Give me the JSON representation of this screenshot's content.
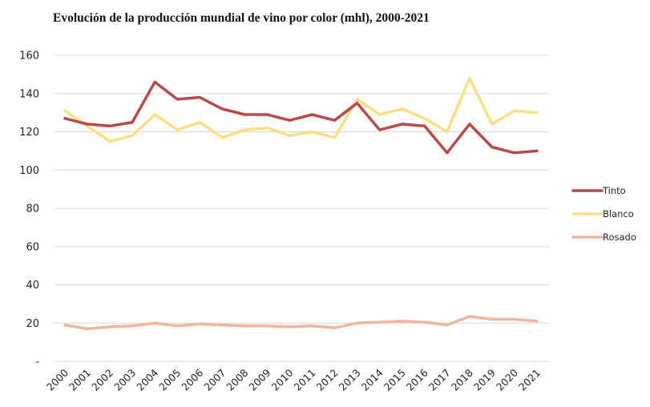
{
  "chart_data": {
    "type": "line",
    "title": "Evolución de la producción mundial de vino por color (mhl), 2000-2021",
    "xlabel": "",
    "ylabel": "",
    "ylim": [
      0,
      160
    ],
    "yticks": [
      0,
      20,
      40,
      60,
      80,
      100,
      120,
      140,
      160
    ],
    "ytick_labels": [
      "-",
      "20",
      "40",
      "60",
      "80",
      "100",
      "120",
      "140",
      "160"
    ],
    "grid": true,
    "legend_position": "right",
    "categories": [
      "2000",
      "2001",
      "2002",
      "2003",
      "2004",
      "2005",
      "2006",
      "2007",
      "2008",
      "2009",
      "2010",
      "2011",
      "2012",
      "2013",
      "2014",
      "2015",
      "2016",
      "2017",
      "2018",
      "2019",
      "2020",
      "2021"
    ],
    "series": [
      {
        "name": "Tinto",
        "color": "#b84a4a",
        "values": [
          127,
          124,
          123,
          125,
          146,
          137,
          138,
          132,
          129,
          129,
          126,
          129,
          126,
          135,
          121,
          124,
          123,
          109,
          124,
          112,
          109,
          110
        ]
      },
      {
        "name": "Blanco",
        "color": "#fbdf85",
        "values": [
          131,
          123,
          115,
          118,
          129,
          121,
          125,
          117,
          121,
          122,
          118,
          120,
          117,
          137,
          129,
          132,
          127,
          120,
          148,
          124,
          131,
          130
        ]
      },
      {
        "name": "Rosado",
        "color": "#f2b49b",
        "values": [
          19,
          17,
          18,
          18.5,
          20,
          18.5,
          19.5,
          19,
          18.5,
          18.5,
          18,
          18.5,
          17.5,
          20,
          20.5,
          21,
          20.5,
          19,
          23.5,
          22,
          22,
          21
        ]
      }
    ]
  }
}
